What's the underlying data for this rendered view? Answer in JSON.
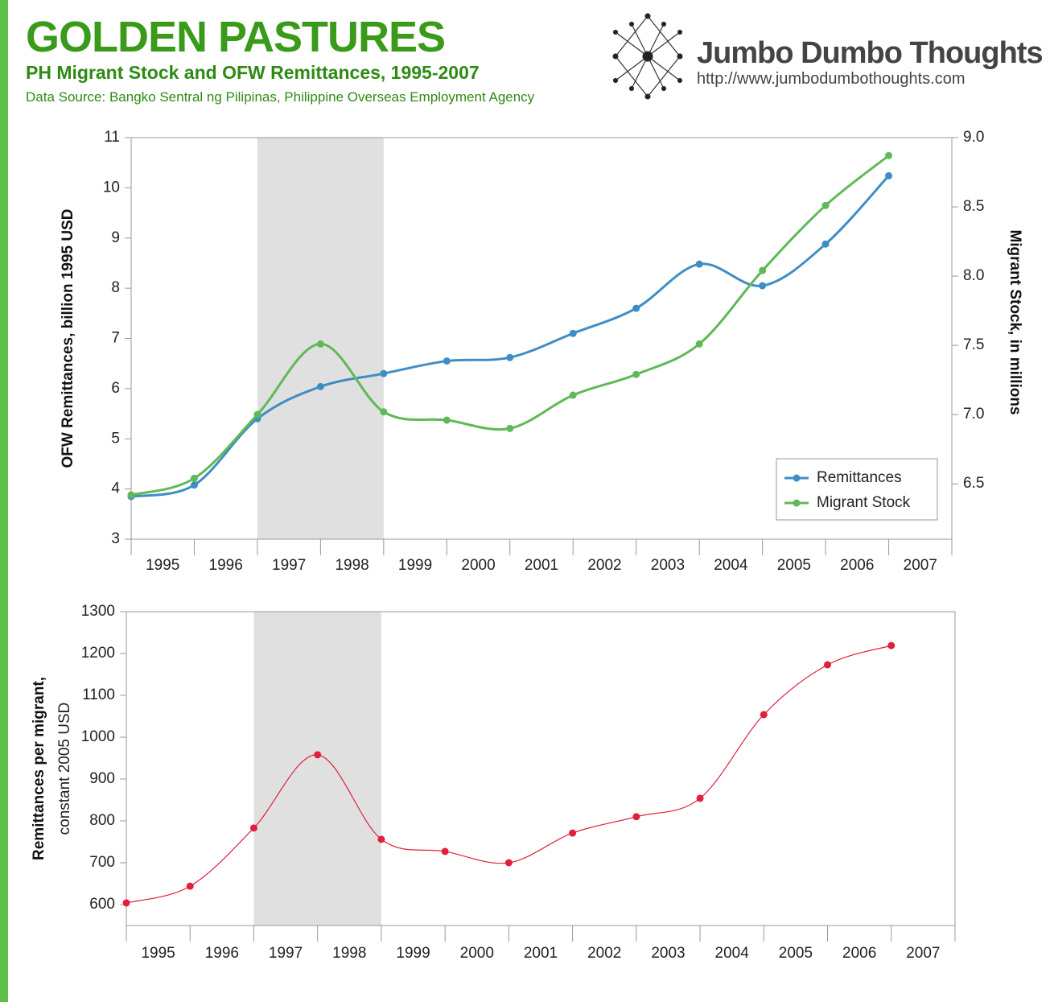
{
  "header": {
    "title": "GOLDEN PASTURES",
    "subtitle": "PH Migrant Stock and OFW Remittances, 1995-2007",
    "source": "Data Source: Bangko Sentral ng Pilipinas, Philippine Overseas Employment Agency",
    "brand": "Jumbo Dumbo Thoughts",
    "url": "http://www.jumbodumbothoughts.com"
  },
  "chart_data": [
    {
      "type": "line",
      "categories": [
        "1995",
        "1996",
        "1997",
        "1998",
        "1999",
        "2000",
        "2001",
        "2002",
        "2003",
        "2004",
        "2005",
        "2006",
        "2007"
      ],
      "shaded": [
        "1997",
        "1998"
      ],
      "ylabel": "OFW Remittances, billion 1995 USD",
      "y2label": "Migrant Stock, in millions",
      "ylim": [
        3,
        11
      ],
      "yticks": [
        3,
        4,
        5,
        6,
        7,
        8,
        9,
        10,
        11
      ],
      "y2lim": [
        6.1,
        9.0
      ],
      "y2ticks": [
        6.5,
        {
          "value": 7.0,
          "label": "7.0"
        },
        7.5,
        {
          "value": 8.0,
          "label": "8.0"
        },
        8.5,
        {
          "value": 9.0,
          "label": "9.0"
        }
      ],
      "legend": "lower right",
      "series": [
        {
          "name": "Remittances",
          "color": "#3f8dc5",
          "values": [
            3.85,
            4.08,
            5.4,
            6.04,
            6.3,
            6.55,
            6.62,
            7.1,
            7.6,
            8.48,
            8.05,
            8.88,
            10.24
          ]
        },
        {
          "name": "Migrant Stock",
          "color": "#5fb956",
          "axis": "y2",
          "values": [
            6.42,
            6.54,
            7.0,
            7.51,
            7.02,
            6.96,
            6.9,
            7.14,
            7.29,
            7.51,
            8.04,
            8.51,
            8.87
          ]
        }
      ]
    },
    {
      "type": "line",
      "categories": [
        "1995",
        "1996",
        "1997",
        "1998",
        "1999",
        "2000",
        "2001",
        "2002",
        "2003",
        "2004",
        "2005",
        "2006",
        "2007"
      ],
      "shaded": [
        "1997",
        "1998"
      ],
      "ylabel": "Remittances per migrant,",
      "ylabel_sub": "constant 2005 USD",
      "ylim": [
        550,
        1300
      ],
      "yticks": [
        600,
        700,
        800,
        900,
        1000,
        1100,
        1200,
        1300
      ],
      "color": "#e0203d",
      "values": [
        604,
        644,
        783,
        958,
        756,
        727,
        700,
        771,
        810,
        854,
        1054,
        1173,
        1219
      ]
    }
  ]
}
